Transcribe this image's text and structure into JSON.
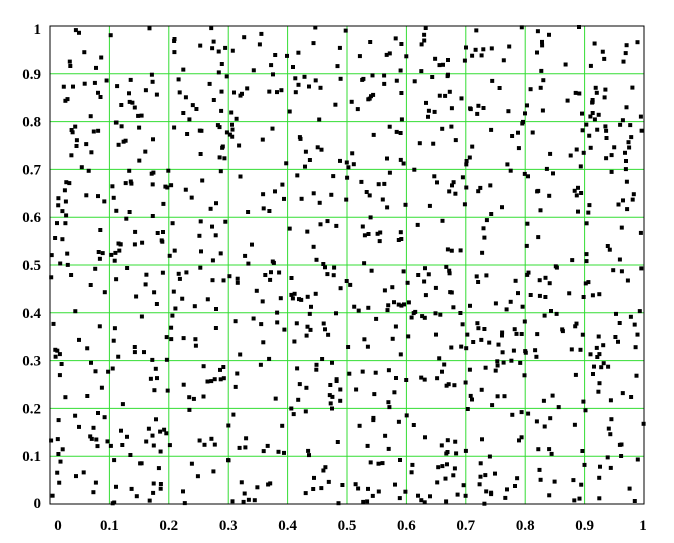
{
  "chart_data": {
    "type": "scatter",
    "title": "",
    "xlabel": "",
    "ylabel": "",
    "xlim": [
      0,
      1
    ],
    "ylim": [
      0,
      1
    ],
    "grid": true,
    "legend": "none",
    "x_ticks": [
      "0",
      "0.1",
      "0.2",
      "0.3",
      "0.4",
      "0.5",
      "0.6",
      "0.7",
      "0.8",
      "0.9",
      "1"
    ],
    "y_ticks": [
      "0",
      "0.1",
      "0.2",
      "0.3",
      "0.4",
      "0.5",
      "0.6",
      "0.7",
      "0.8",
      "0.9",
      "1"
    ],
    "colors": {
      "grid": "#33dd33",
      "marker": "#000000",
      "frame": "#000000",
      "background": "#ffffff"
    },
    "series": [
      {
        "points_count": 1000,
        "distribution": "uniform random on [0,1] x [0,1]"
      }
    ]
  }
}
